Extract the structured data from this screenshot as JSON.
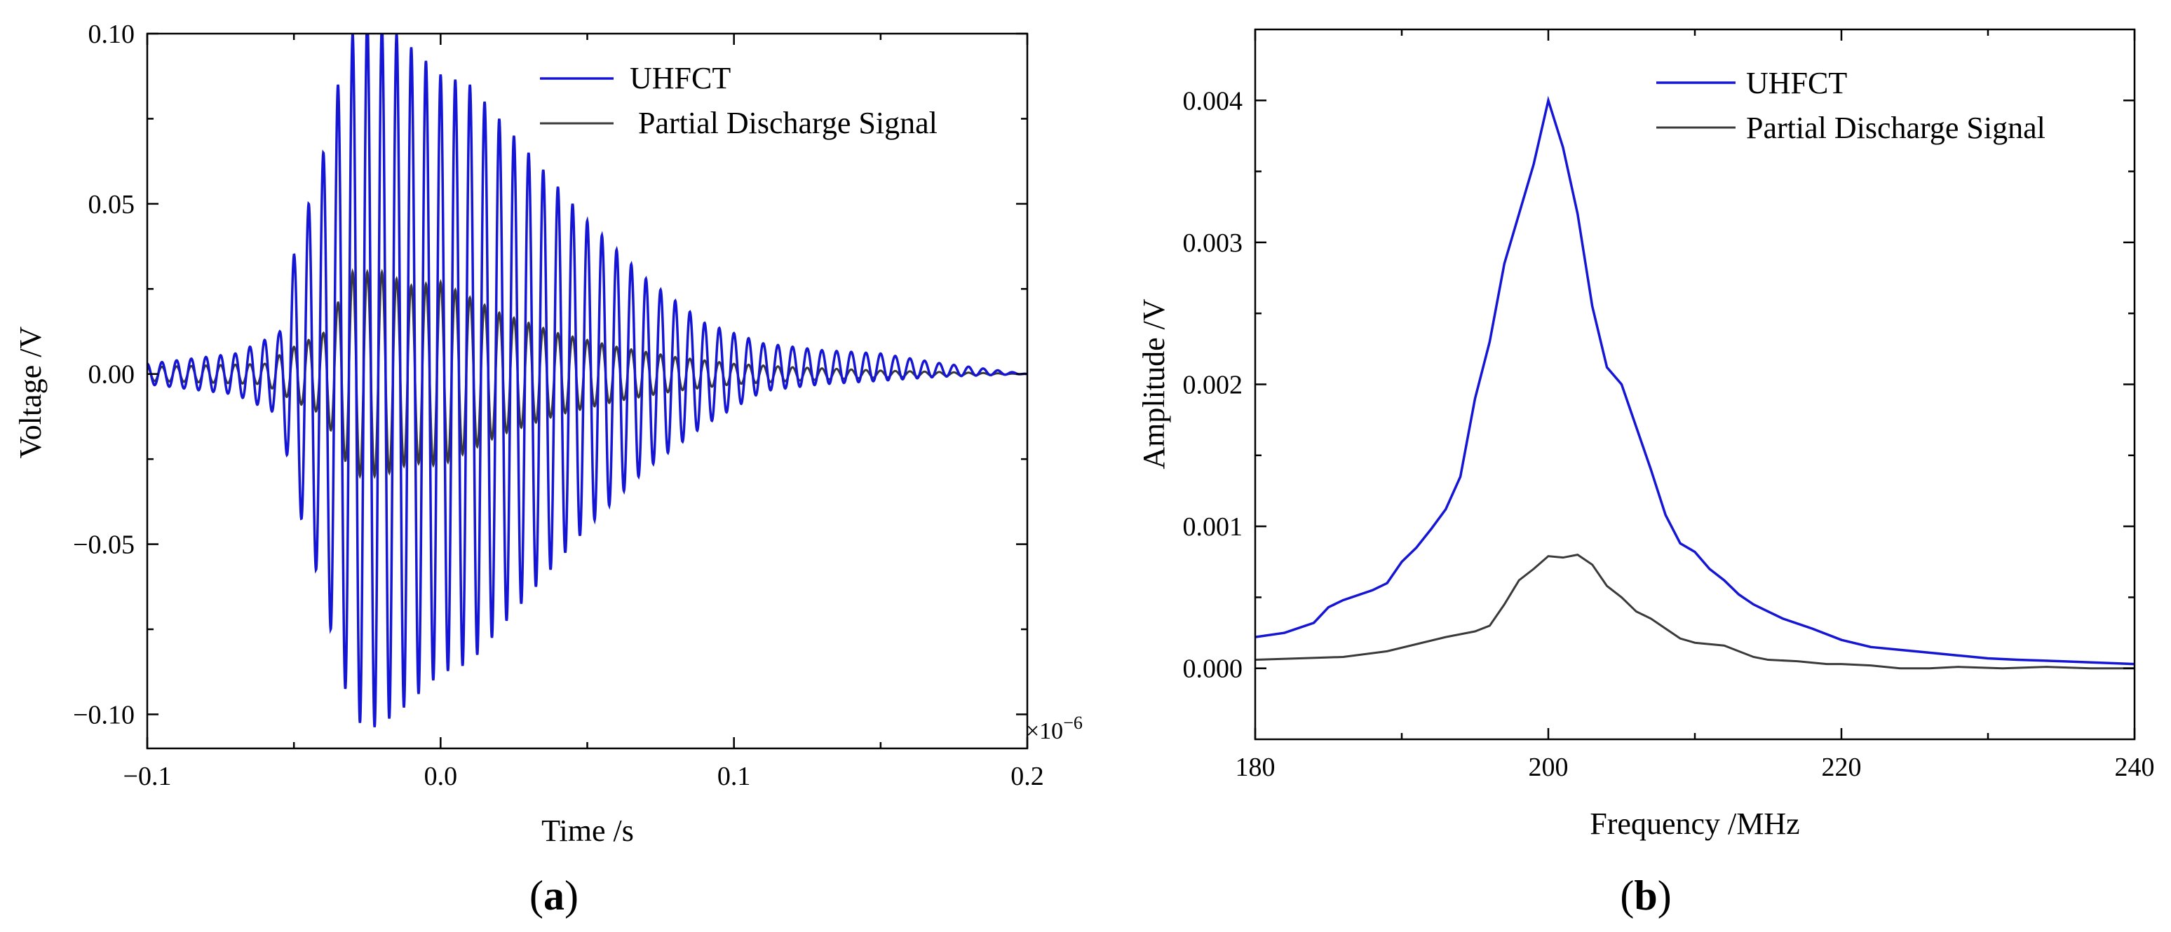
{
  "chart_data": [
    {
      "id": "a",
      "type": "line",
      "panel_label": "a",
      "xlabel": "Time /s",
      "ylabel": "Voltage /V",
      "x_multiplier": "×10",
      "x_multiplier_exp": "−6",
      "xlim": [
        -0.1,
        0.2
      ],
      "ylim": [
        -0.11,
        0.1
      ],
      "xticks": [
        -0.1,
        0.0,
        0.1,
        0.2
      ],
      "xtick_labels": [
        "−0.1",
        "0.0",
        "0.1",
        "0.2"
      ],
      "yticks": [
        -0.1,
        -0.05,
        0.0,
        0.05,
        0.1
      ],
      "ytick_labels": [
        "−0.10",
        "−0.05",
        "0.00",
        "0.05",
        "0.10"
      ],
      "legend_position": "top-right",
      "series": [
        {
          "name": "UHFCT",
          "color": "#1515d6",
          "model": "damped_oscillation",
          "frequency_per_unit": 200,
          "envelope_x": [
            -0.1,
            -0.07,
            -0.055,
            -0.05,
            -0.045,
            -0.04,
            -0.035,
            -0.03,
            -0.025,
            -0.015,
            0.0,
            0.01,
            0.03,
            0.05,
            0.07,
            0.09,
            0.11,
            0.13,
            0.15,
            0.17,
            0.2
          ],
          "envelope_y": [
            0.003,
            0.006,
            0.012,
            0.035,
            0.05,
            0.065,
            0.085,
            0.1,
            0.105,
            0.1,
            0.088,
            0.085,
            0.065,
            0.045,
            0.028,
            0.015,
            0.007,
            0.005,
            0.004,
            0.002,
            0.0
          ],
          "offset_x": [
            -0.1,
            0.09,
            0.11,
            0.15,
            0.2
          ],
          "offset_y": [
            0.0,
            0.0,
            0.002,
            0.002,
            0.0
          ]
        },
        {
          "name": "Partial Discharge Signal",
          "color": "#3a3a3a",
          "model": "damped_oscillation",
          "frequency_per_unit": 200,
          "envelope_x": [
            -0.1,
            -0.06,
            -0.05,
            -0.04,
            -0.03,
            -0.02,
            -0.01,
            0.0,
            0.02,
            0.04,
            0.06,
            0.08,
            0.1,
            0.12,
            0.15,
            0.2
          ],
          "envelope_y": [
            0.002,
            0.003,
            0.008,
            0.012,
            0.03,
            0.03,
            0.026,
            0.027,
            0.018,
            0.012,
            0.008,
            0.005,
            0.003,
            0.002,
            0.001,
            0.0
          ],
          "offset_x": [
            -0.1,
            0.2
          ],
          "offset_y": [
            0.0,
            0.0
          ]
        }
      ]
    },
    {
      "id": "b",
      "type": "line",
      "panel_label": "b",
      "xlabel": "Frequency /MHz",
      "ylabel": "Amplitude /V",
      "xlim": [
        180,
        240
      ],
      "ylim": [
        -0.0005,
        0.0045
      ],
      "xticks": [
        180,
        200,
        220,
        240
      ],
      "xtick_labels": [
        "180",
        "200",
        "220",
        "240"
      ],
      "yticks": [
        0.0,
        0.001,
        0.002,
        0.003,
        0.004
      ],
      "ytick_labels": [
        "0.000",
        "0.001",
        "0.002",
        "0.003",
        "0.004"
      ],
      "legend_position": "top-right",
      "series": [
        {
          "name": "UHFCT",
          "color": "#1515d6",
          "x": [
            180,
            182,
            184,
            185,
            186,
            188,
            189,
            190,
            191,
            192,
            193,
            194,
            195,
            196,
            197,
            198,
            199,
            200,
            201,
            202,
            203,
            204,
            205,
            206,
            207,
            208,
            209,
            210,
            211,
            212,
            213,
            214,
            215,
            216,
            218,
            220,
            222,
            224,
            226,
            228,
            230,
            232,
            235,
            240
          ],
          "y": [
            0.00022,
            0.00025,
            0.00032,
            0.00043,
            0.00048,
            0.00055,
            0.0006,
            0.00075,
            0.00085,
            0.00098,
            0.00112,
            0.00135,
            0.0019,
            0.0023,
            0.00285,
            0.0032,
            0.00355,
            0.004,
            0.00367,
            0.0032,
            0.00255,
            0.00212,
            0.002,
            0.0017,
            0.0014,
            0.00108,
            0.00088,
            0.00082,
            0.0007,
            0.00062,
            0.00052,
            0.00045,
            0.0004,
            0.00035,
            0.00028,
            0.0002,
            0.00015,
            0.00013,
            0.00011,
            9e-05,
            7e-05,
            6e-05,
            5e-05,
            3e-05
          ]
        },
        {
          "name": "Partial Discharge Signal",
          "color": "#3a3a3a",
          "x": [
            180,
            183,
            186,
            189,
            191,
            193,
            195,
            196,
            197,
            198,
            199,
            200,
            201,
            202,
            203,
            204,
            205,
            206,
            207,
            208,
            209,
            210,
            211,
            212,
            213,
            214,
            215,
            217,
            219,
            220,
            222,
            224,
            226,
            228,
            231,
            234,
            237,
            240
          ],
          "y": [
            6e-05,
            7e-05,
            8e-05,
            0.00012,
            0.00017,
            0.00022,
            0.00026,
            0.0003,
            0.00045,
            0.00062,
            0.0007,
            0.00079,
            0.00078,
            0.0008,
            0.00073,
            0.00058,
            0.0005,
            0.0004,
            0.00035,
            0.00028,
            0.00021,
            0.00018,
            0.00017,
            0.00016,
            0.00012,
            8e-05,
            6e-05,
            5e-05,
            3e-05,
            3e-05,
            2e-05,
            0.0,
            0.0,
            1e-05,
            0.0,
            1e-05,
            0.0,
            0.0
          ]
        }
      ]
    }
  ]
}
